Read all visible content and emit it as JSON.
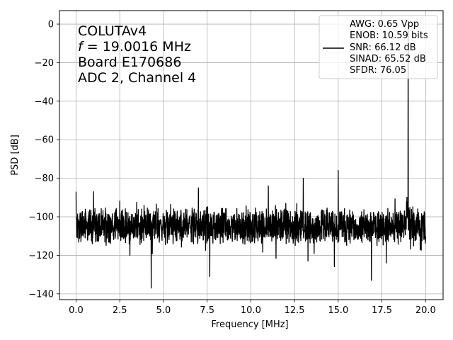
{
  "chart_data": {
    "type": "line",
    "xlabel": "Frequency [MHz]",
    "ylabel": "PSD [dB]",
    "xlim": [
      -0.95,
      21.0
    ],
    "ylim": [
      -143,
      7
    ],
    "xticks": [
      0.0,
      2.5,
      5.0,
      7.5,
      10.0,
      12.5,
      15.0,
      17.5,
      20.0
    ],
    "xtick_labels": [
      "0.0",
      "2.5",
      "5.0",
      "7.5",
      "10.0",
      "12.5",
      "15.0",
      "17.5",
      "20.0"
    ],
    "yticks": [
      0,
      -20,
      -40,
      -60,
      -80,
      -100,
      -120,
      -140
    ],
    "ytick_labels": [
      "0",
      "−20",
      "−40",
      "−60",
      "−80",
      "−100",
      "−120",
      "−140"
    ],
    "grid": true,
    "line_color": "#000000",
    "annotation": {
      "line1": "COLUTAv4",
      "line2_italic": "f",
      "line2_rest": " = 19.0016 MHz",
      "line3": "Board E170686",
      "line4": "ADC 2, Channel 4"
    },
    "legend": {
      "placement": "top-right",
      "entries": [
        "AWG: 0.65 Vpp",
        "ENOB: 10.59 bits",
        "SNR: 66.12 dB",
        "SINAD: 65.52 dB",
        "SFDR: 76.05"
      ]
    },
    "noise_floor_db": -105,
    "peaks": [
      {
        "x": 19.0016,
        "y": 0
      },
      {
        "x": 0.0,
        "y": -87
      },
      {
        "x": 15.0,
        "y": -76
      },
      {
        "x": 13.0,
        "y": -80
      },
      {
        "x": 11.0,
        "y": -84
      },
      {
        "x": 7.0,
        "y": -85
      },
      {
        "x": 1.0,
        "y": -87
      },
      {
        "x": 4.3,
        "y": -137
      },
      {
        "x": 16.9,
        "y": -133
      },
      {
        "x": 7.65,
        "y": -131
      }
    ]
  }
}
